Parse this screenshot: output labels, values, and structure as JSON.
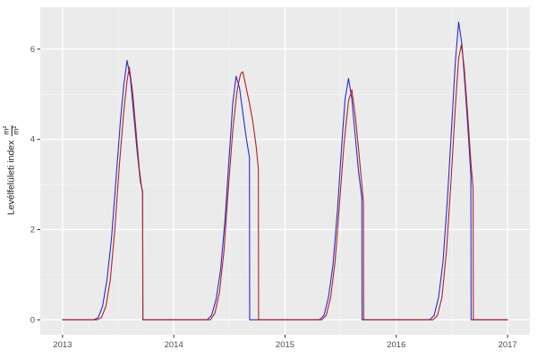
{
  "chart_data": {
    "type": "line",
    "title": "",
    "xlabel": "",
    "ylabel": {
      "text": "Levélfelületi index",
      "unit_numerator": "m²",
      "unit_denominator": "m²"
    },
    "xlim": [
      2012.8,
      2017.2
    ],
    "ylim": [
      -0.33,
      6.93
    ],
    "x_ticks": [
      {
        "value": 2013,
        "label": "2013"
      },
      {
        "value": 2014,
        "label": "2014"
      },
      {
        "value": 2015,
        "label": "2015"
      },
      {
        "value": 2016,
        "label": "2016"
      },
      {
        "value": 2017,
        "label": "2017"
      }
    ],
    "y_ticks": [
      {
        "value": 0,
        "label": "0"
      },
      {
        "value": 2,
        "label": "2"
      },
      {
        "value": 4,
        "label": "4"
      },
      {
        "value": 6,
        "label": "6"
      }
    ],
    "x_minor": [
      2013.5,
      2014.5,
      2015.5,
      2016.5
    ],
    "y_minor": [
      1,
      3,
      5
    ],
    "panel_color": "#EBEBEB",
    "grid_major_color": "#FFFFFF",
    "grid_minor_color": "#F5F5F5",
    "axis_text_color": "#4d4d4d",
    "tick_mark_color": "#333333",
    "legend": "none",
    "grid": "on",
    "series": [
      {
        "name": "series-blue",
        "color": "#2a2ad4",
        "points": [
          [
            2013.0,
            0
          ],
          [
            2013.28,
            0
          ],
          [
            2013.32,
            0.05
          ],
          [
            2013.36,
            0.3
          ],
          [
            2013.4,
            0.9
          ],
          [
            2013.44,
            1.8
          ],
          [
            2013.48,
            3.1
          ],
          [
            2013.52,
            4.4
          ],
          [
            2013.55,
            5.2
          ],
          [
            2013.58,
            5.75
          ],
          [
            2013.61,
            5.35
          ],
          [
            2013.64,
            4.55
          ],
          [
            2013.67,
            3.75
          ],
          [
            2013.7,
            3.05
          ],
          [
            2013.72,
            2.85
          ],
          [
            2013.722,
            0
          ],
          [
            2013.85,
            0
          ],
          [
            2014.0,
            0
          ],
          [
            2014.3,
            0
          ],
          [
            2014.34,
            0.1
          ],
          [
            2014.38,
            0.45
          ],
          [
            2014.42,
            1.1
          ],
          [
            2014.46,
            2.2
          ],
          [
            2014.5,
            3.7
          ],
          [
            2014.53,
            4.8
          ],
          [
            2014.56,
            5.4
          ],
          [
            2014.59,
            5.15
          ],
          [
            2014.62,
            4.6
          ],
          [
            2014.65,
            4.05
          ],
          [
            2014.68,
            3.6
          ],
          [
            2014.682,
            0
          ],
          [
            2014.85,
            0
          ],
          [
            2015.0,
            0
          ],
          [
            2015.31,
            0
          ],
          [
            2015.35,
            0.1
          ],
          [
            2015.39,
            0.5
          ],
          [
            2015.43,
            1.2
          ],
          [
            2015.47,
            2.4
          ],
          [
            2015.51,
            3.9
          ],
          [
            2015.54,
            4.9
          ],
          [
            2015.57,
            5.35
          ],
          [
            2015.6,
            4.9
          ],
          [
            2015.63,
            4.1
          ],
          [
            2015.66,
            3.3
          ],
          [
            2015.69,
            2.7
          ],
          [
            2015.692,
            0
          ],
          [
            2015.85,
            0
          ],
          [
            2016.0,
            0
          ],
          [
            2016.3,
            0
          ],
          [
            2016.34,
            0.1
          ],
          [
            2016.38,
            0.5
          ],
          [
            2016.42,
            1.3
          ],
          [
            2016.46,
            2.7
          ],
          [
            2016.5,
            4.4
          ],
          [
            2016.53,
            5.7
          ],
          [
            2016.56,
            6.6
          ],
          [
            2016.59,
            6.1
          ],
          [
            2016.62,
            5.1
          ],
          [
            2016.65,
            4.0
          ],
          [
            2016.67,
            3.2
          ],
          [
            2016.672,
            0
          ],
          [
            2016.85,
            0
          ],
          [
            2017.0,
            0
          ]
        ]
      },
      {
        "name": "series-red",
        "color": "#B22222",
        "points": [
          [
            2013.0,
            0
          ],
          [
            2013.31,
            0
          ],
          [
            2013.35,
            0.05
          ],
          [
            2013.39,
            0.3
          ],
          [
            2013.43,
            0.9
          ],
          [
            2013.47,
            2.0
          ],
          [
            2013.51,
            3.4
          ],
          [
            2013.55,
            4.6
          ],
          [
            2013.58,
            5.3
          ],
          [
            2013.6,
            5.6
          ],
          [
            2013.63,
            5.05
          ],
          [
            2013.66,
            4.2
          ],
          [
            2013.69,
            3.35
          ],
          [
            2013.71,
            2.95
          ],
          [
            2013.72,
            2.8
          ],
          [
            2013.722,
            0
          ],
          [
            2013.85,
            0
          ],
          [
            2014.0,
            0
          ],
          [
            2014.33,
            0
          ],
          [
            2014.37,
            0.15
          ],
          [
            2014.41,
            0.6
          ],
          [
            2014.45,
            1.5
          ],
          [
            2014.49,
            2.9
          ],
          [
            2014.53,
            4.2
          ],
          [
            2014.57,
            5.1
          ],
          [
            2014.6,
            5.45
          ],
          [
            2014.62,
            5.5
          ],
          [
            2014.65,
            5.15
          ],
          [
            2014.68,
            4.8
          ],
          [
            2014.71,
            4.4
          ],
          [
            2014.74,
            3.85
          ],
          [
            2014.76,
            3.35
          ],
          [
            2014.762,
            0
          ],
          [
            2014.85,
            0
          ],
          [
            2015.0,
            0
          ],
          [
            2015.33,
            0
          ],
          [
            2015.37,
            0.1
          ],
          [
            2015.41,
            0.5
          ],
          [
            2015.45,
            1.3
          ],
          [
            2015.49,
            2.6
          ],
          [
            2015.53,
            3.9
          ],
          [
            2015.57,
            4.85
          ],
          [
            2015.6,
            5.1
          ],
          [
            2015.63,
            4.55
          ],
          [
            2015.66,
            3.8
          ],
          [
            2015.69,
            3.0
          ],
          [
            2015.705,
            2.6
          ],
          [
            2015.707,
            0
          ],
          [
            2015.85,
            0
          ],
          [
            2016.0,
            0
          ],
          [
            2016.33,
            0
          ],
          [
            2016.37,
            0.1
          ],
          [
            2016.41,
            0.5
          ],
          [
            2016.45,
            1.5
          ],
          [
            2016.49,
            3.0
          ],
          [
            2016.53,
            4.7
          ],
          [
            2016.56,
            5.8
          ],
          [
            2016.585,
            6.1
          ],
          [
            2016.61,
            5.6
          ],
          [
            2016.64,
            4.6
          ],
          [
            2016.67,
            3.5
          ],
          [
            2016.69,
            2.9
          ],
          [
            2016.692,
            0
          ],
          [
            2017.0,
            0
          ]
        ]
      }
    ]
  }
}
